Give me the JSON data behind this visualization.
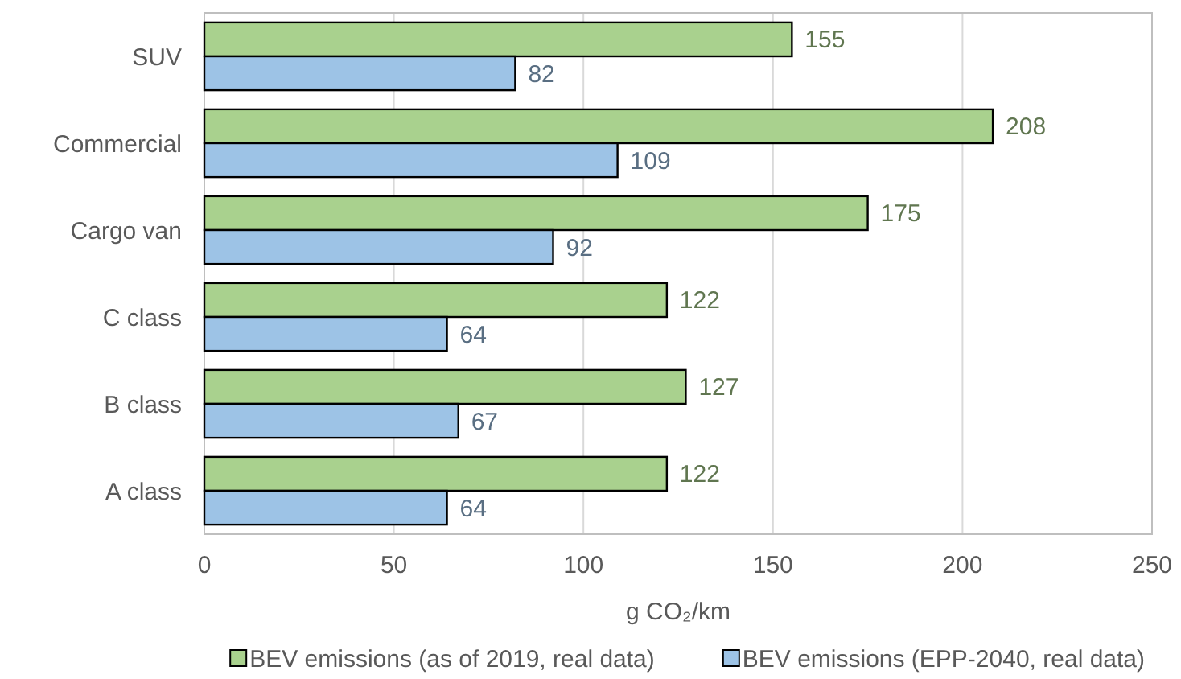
{
  "chart_data": {
    "type": "bar",
    "orientation": "horizontal",
    "xlabel": "g CO₂/km",
    "categories": [
      "SUV",
      "Commercial",
      "Cargo van",
      "C class",
      "B class",
      "A class"
    ],
    "series": [
      {
        "name": "BEV emissions (as of 2019, real data)",
        "color": "#a9d18e",
        "values": [
          155,
          208,
          175,
          122,
          127,
          122
        ]
      },
      {
        "name": "BEV emissions (EPP-2040, real data)",
        "color": "#9dc3e6",
        "values": [
          82,
          109,
          92,
          64,
          67,
          64
        ]
      }
    ],
    "xlim": [
      0,
      250
    ],
    "xticks": [
      0,
      50,
      100,
      150,
      200,
      250
    ],
    "grid": "x",
    "legend": "bottom",
    "data_labels": true
  }
}
